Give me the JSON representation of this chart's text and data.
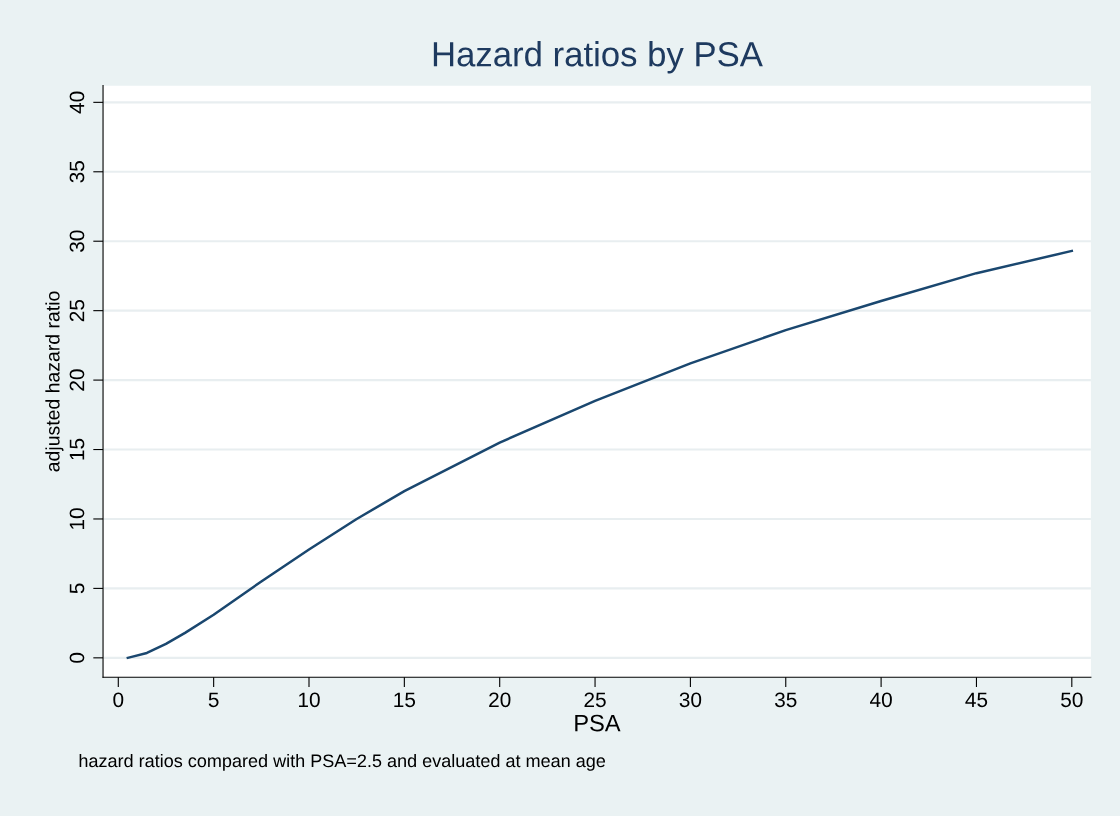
{
  "chart_data": {
    "type": "line",
    "title": "Hazard ratios by PSA",
    "xlabel": "PSA",
    "ylabel": "adjusted hazard ratio",
    "annotations": [
      "hazard ratios compared with PSA=2.5 and evaluated at mean age"
    ],
    "x": [
      0.5,
      1.5,
      2.5,
      3.5,
      5,
      7.5,
      10,
      12.5,
      15,
      20,
      25,
      30,
      35,
      40,
      45,
      50
    ],
    "series": [
      {
        "color": "#1a476f",
        "values": [
          0,
          0.35,
          1.0,
          1.8,
          3.1,
          5.5,
          7.8,
          10.0,
          12.0,
          15.5,
          18.5,
          21.2,
          23.6,
          25.7,
          27.7,
          29.3
        ]
      }
    ],
    "xlim": [
      -0.8,
      51
    ],
    "ylim": [
      -1.4,
      41.2
    ],
    "xticks": [
      0,
      5,
      10,
      15,
      20,
      25,
      30,
      35,
      40,
      45,
      50
    ],
    "yticks": [
      0,
      5,
      10,
      15,
      20,
      25,
      30,
      35,
      40
    ],
    "grid": "y",
    "marker": "none",
    "line_style": "solid"
  }
}
